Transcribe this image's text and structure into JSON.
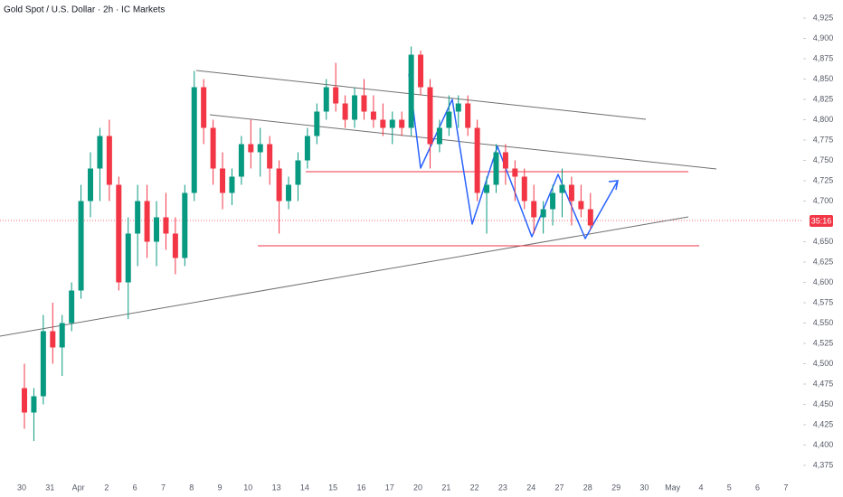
{
  "chart_data": {
    "type": "candlestick",
    "title": "Gold Spot / U.S. Dollar · 2h · IC Markets",
    "price_tag": "35:16",
    "grid": false,
    "up_color": "#089981",
    "down_color": "#f23645",
    "ylim": [
      4375,
      4925
    ],
    "yticks": [
      {
        "value": 4925,
        "label": "4,925"
      },
      {
        "value": 4900,
        "label": "4,900"
      },
      {
        "value": 4875,
        "label": "4,875"
      },
      {
        "value": 4850,
        "label": "4,850"
      },
      {
        "value": 4825,
        "label": "4,825"
      },
      {
        "value": 4800,
        "label": "4,800"
      },
      {
        "value": 4775,
        "label": "4,775"
      },
      {
        "value": 4750,
        "label": "4,750"
      },
      {
        "value": 4725,
        "label": "4,725"
      },
      {
        "value": 4700,
        "label": "4,700"
      },
      {
        "value": 4650,
        "label": "4,650"
      },
      {
        "value": 4625,
        "label": "4,625"
      },
      {
        "value": 4600,
        "label": "4,600"
      },
      {
        "value": 4575,
        "label": "4,575"
      },
      {
        "value": 4550,
        "label": "4,550"
      },
      {
        "value": 4525,
        "label": "4,525"
      },
      {
        "value": 4500,
        "label": "4,500"
      },
      {
        "value": 4475,
        "label": "4,475"
      },
      {
        "value": 4450,
        "label": "4,450"
      },
      {
        "value": 4425,
        "label": "4,425"
      },
      {
        "value": 4400,
        "label": "4,400"
      },
      {
        "value": 4375,
        "label": "4,375"
      }
    ],
    "categories": [
      "30",
      null,
      null,
      "31",
      null,
      null,
      "Apr",
      null,
      null,
      "2",
      null,
      null,
      "6",
      null,
      null,
      "7",
      null,
      null,
      "8",
      null,
      null,
      "9",
      null,
      null,
      "10",
      null,
      null,
      "13",
      null,
      null,
      "14",
      null,
      null,
      "15",
      null,
      null,
      "16",
      null,
      null,
      "17",
      null,
      null,
      "20",
      null,
      null,
      "21",
      null,
      null,
      "22",
      null,
      null,
      "23",
      null,
      null,
      "24",
      null,
      null,
      "27",
      null,
      null,
      "28",
      null,
      null,
      "29",
      null,
      null,
      "30",
      null,
      null,
      "May",
      null,
      null,
      "4",
      null,
      null,
      "5",
      null,
      null,
      "6",
      null,
      null,
      "7"
    ],
    "open": [
      4470,
      4440,
      4460,
      4540,
      4520,
      4550,
      4590,
      4700,
      4740,
      4780,
      4720,
      4600,
      4660,
      4700,
      4650,
      4680,
      4660,
      4630,
      4710,
      4840,
      4790,
      4740,
      4710,
      4730,
      4770,
      4760,
      4770,
      4740,
      4700,
      4720,
      4750,
      4780,
      4810,
      4840,
      4820,
      4800,
      4830,
      4810,
      4800,
      4790,
      4800,
      4790,
      4880,
      4840,
      4770,
      4790,
      4810,
      4820,
      4790,
      4710,
      4720,
      4760,
      4740,
      4730,
      4700,
      4680,
      4690,
      4710,
      4720,
      4700,
      4690,
      null,
      null,
      null,
      null,
      null,
      null,
      null,
      null,
      null,
      null,
      null,
      null,
      null,
      null,
      null,
      null,
      null,
      null,
      null,
      null,
      null
    ],
    "high": [
      4500,
      4470,
      4560,
      4575,
      4560,
      4600,
      4720,
      4760,
      4790,
      4800,
      4730,
      4680,
      4720,
      4720,
      4700,
      4710,
      4680,
      4720,
      4860,
      4850,
      4800,
      4760,
      4740,
      4780,
      4800,
      4790,
      4780,
      4750,
      4730,
      4760,
      4790,
      4820,
      4850,
      4870,
      4830,
      4840,
      4850,
      4830,
      4820,
      4810,
      4810,
      4890,
      4885,
      4850,
      4800,
      4830,
      4830,
      4830,
      4800,
      4730,
      4770,
      4770,
      4750,
      4740,
      4720,
      4700,
      4720,
      4740,
      4730,
      4720,
      4710,
      null,
      null,
      null,
      null,
      null,
      null,
      null,
      null,
      null,
      null,
      null,
      null,
      null,
      null,
      null,
      null,
      null,
      null,
      null,
      null,
      null
    ],
    "low": [
      4420,
      4405,
      4450,
      4500,
      4485,
      4540,
      4580,
      4680,
      4700,
      4700,
      4590,
      4555,
      4620,
      4630,
      4620,
      4640,
      4610,
      4620,
      4700,
      4770,
      4720,
      4690,
      4695,
      4720,
      4740,
      4730,
      4720,
      4660,
      4690,
      4700,
      4740,
      4770,
      4800,
      4810,
      4790,
      4790,
      4800,
      4790,
      4780,
      4770,
      4780,
      4780,
      4830,
      4740,
      4760,
      4780,
      4790,
      4780,
      4700,
      4660,
      4710,
      4720,
      4700,
      4690,
      4660,
      4660,
      4670,
      4680,
      4670,
      4680,
      4665,
      null,
      null,
      null,
      null,
      null,
      null,
      null,
      null,
      null,
      null,
      null,
      null,
      null,
      null,
      null,
      null,
      null,
      null,
      null,
      null,
      null
    ],
    "close": [
      4440,
      4460,
      4540,
      4520,
      4550,
      4590,
      4700,
      4740,
      4780,
      4720,
      4600,
      4660,
      4700,
      4650,
      4680,
      4660,
      4630,
      4710,
      4840,
      4790,
      4740,
      4710,
      4730,
      4770,
      4760,
      4770,
      4740,
      4700,
      4720,
      4750,
      4780,
      4810,
      4840,
      4820,
      4800,
      4830,
      4810,
      4800,
      4790,
      4800,
      4790,
      4880,
      4840,
      4770,
      4790,
      4810,
      4820,
      4790,
      4710,
      4720,
      4760,
      4740,
      4730,
      4700,
      4680,
      4690,
      4710,
      4720,
      4700,
      4690,
      4670,
      null,
      null,
      null,
      null,
      null,
      null,
      null,
      null,
      null,
      null,
      null,
      null,
      null,
      null,
      null,
      null,
      null,
      null,
      null,
      null,
      null
    ]
  }
}
